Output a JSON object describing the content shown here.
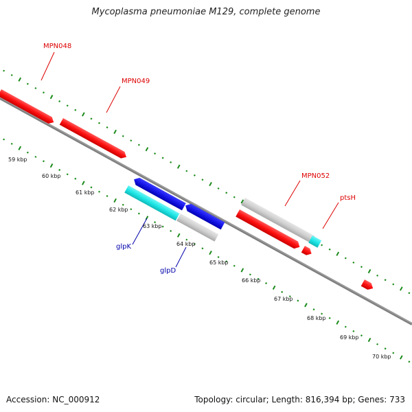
{
  "title": "Mycoplasma pneumoniae M129, complete genome",
  "footer": {
    "accession_label": "Accession:",
    "accession": "NC_000912",
    "topology_label": "Topology:",
    "topology": "circular",
    "length_label": "Length:",
    "length": "816,394 bp",
    "genes_label": "Genes:",
    "genes": "733"
  },
  "colors": {
    "backbone": "#7a7a7a",
    "tick": "#1a8a1a",
    "forward_gene": "#ff1a1a",
    "forward_other": "#c8c8c8",
    "forward_cyan": "#1ad3d3",
    "reverse_gene": "#1a1aee",
    "reverse_cyan": "#1ee6e6",
    "reverse_other": "#c8c8c8",
    "label_forward": "#dd0000",
    "label_reverse": "#0000aa"
  },
  "scale_labels": [
    "59 kbp",
    "60 kbp",
    "61 kbp",
    "62 kbp",
    "63 kbp",
    "64 kbp",
    "65 kbp",
    "66 kbp",
    "67 kbp",
    "68 kbp",
    "69 kbp",
    "70 kbp"
  ],
  "gene_labels": [
    {
      "name": "MPN048",
      "strand": "forward"
    },
    {
      "name": "MPN049",
      "strand": "forward"
    },
    {
      "name": "MPN052",
      "strand": "forward"
    },
    {
      "name": "ptsH",
      "strand": "forward"
    },
    {
      "name": "glpK",
      "strand": "reverse"
    },
    {
      "name": "glpD",
      "strand": "reverse"
    }
  ]
}
